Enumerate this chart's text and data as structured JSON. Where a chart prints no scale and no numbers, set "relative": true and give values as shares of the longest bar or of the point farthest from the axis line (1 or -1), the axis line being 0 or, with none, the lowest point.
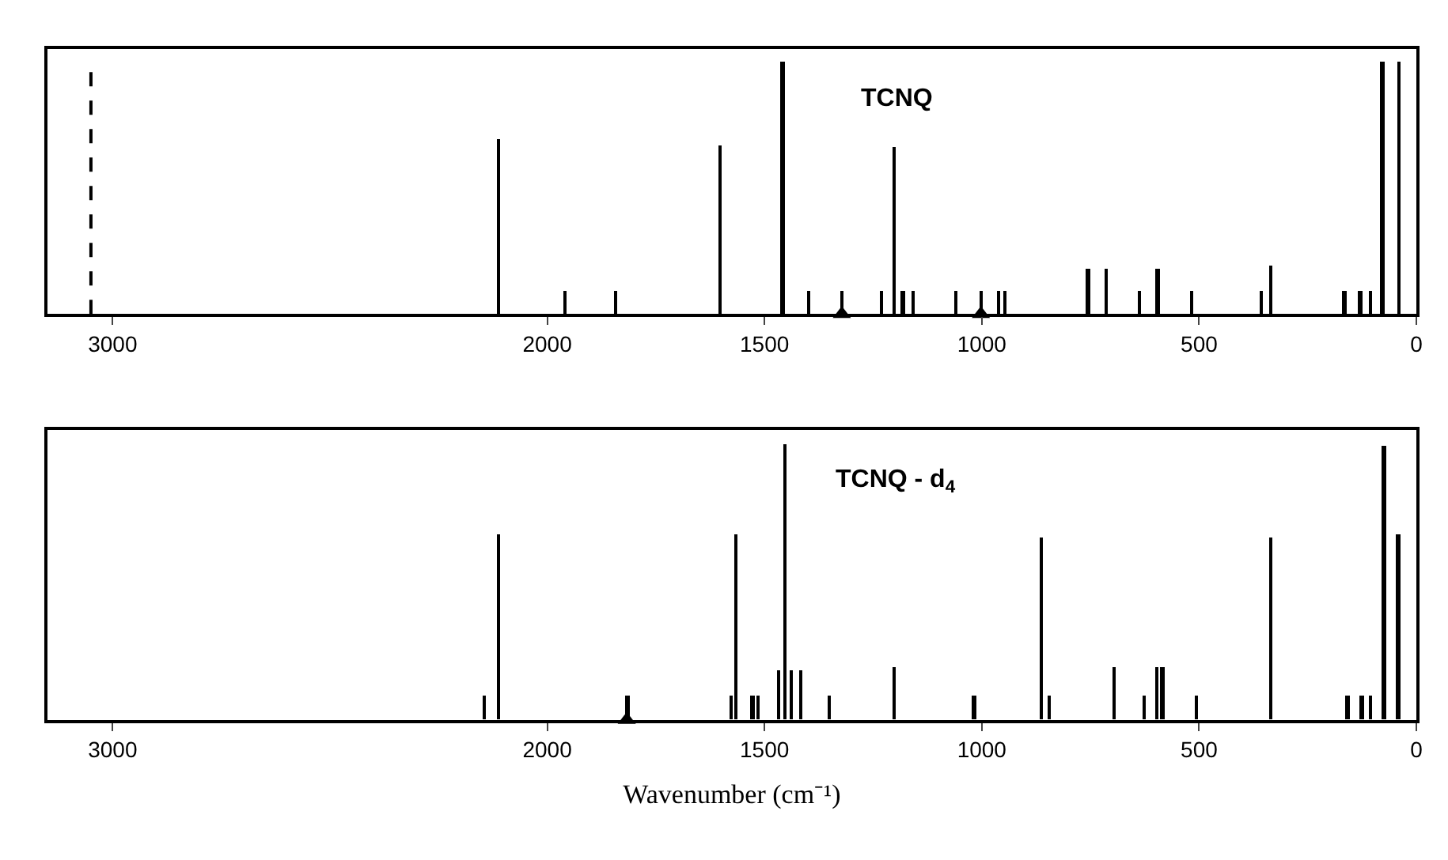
{
  "chart_data": [
    {
      "type": "bar",
      "title": "TCNQ",
      "relative": true,
      "xlim": [
        3150,
        0
      ],
      "xticks": [
        3000,
        2000,
        1500,
        1000,
        500,
        0
      ],
      "series": [
        {
          "color": "#000000",
          "x": [
            2112,
            1960,
            1843,
            1603,
            1459,
            1399,
            1322,
            1232,
            1202,
            1183,
            1158,
            1061,
            1002,
            963,
            947,
            756,
            714,
            639,
            597,
            519,
            357,
            337,
            167,
            130,
            106,
            79,
            41
          ],
          "values": [
            0.69,
            0.09,
            0.09,
            0.67,
            1,
            0.09,
            0.09,
            0.09,
            0.66,
            0.09,
            0.09,
            0.09,
            0.09,
            0.09,
            0.09,
            0.18,
            0.18,
            0.09,
            0.18,
            0.09,
            0.09,
            0.19,
            0.09,
            0.09,
            0.09,
            1,
            1
          ]
        },
        {
          "type": "line",
          "color": "#000000",
          "line_style": "dashed",
          "marker": "none",
          "x": [
            3050,
            3050
          ],
          "values": [
            0,
            0.97
          ]
        },
        {
          "type": "scatter",
          "color": "#000000",
          "marker": "triangle",
          "x": [
            1322,
            1002
          ],
          "values": [
            0,
            0
          ]
        }
      ]
    },
    {
      "type": "bar",
      "title": "TCNQ - d$_{4}$",
      "xlabel": "Wavenumber (cm⁻¹)",
      "relative": true,
      "xlim": [
        3150,
        0
      ],
      "xticks": [
        3000,
        2000,
        1500,
        1000,
        500,
        0
      ],
      "series": [
        {
          "color": "#000000",
          "x": [
            2146,
            2112,
            1817,
            1578,
            1567,
            1529,
            1515,
            1469,
            1453,
            1439,
            1417,
            1353,
            1202,
            1019,
            865,
            845,
            697,
            627,
            598,
            585,
            507,
            336,
            159,
            127,
            106,
            75,
            43
          ],
          "values": [
            0.09,
            0.67,
            0.09,
            0.09,
            0.67,
            0.09,
            0.09,
            0.18,
            1,
            0.18,
            0.18,
            0.09,
            0.19,
            0.09,
            0.66,
            0.09,
            0.19,
            0.09,
            0.19,
            0.19,
            0.09,
            0.66,
            0.09,
            0.09,
            0.09,
            0.99,
            0.67
          ]
        },
        {
          "type": "scatter",
          "color": "#000000",
          "marker": "triangle",
          "x": [
            1817
          ],
          "values": [
            0
          ]
        }
      ]
    }
  ]
}
